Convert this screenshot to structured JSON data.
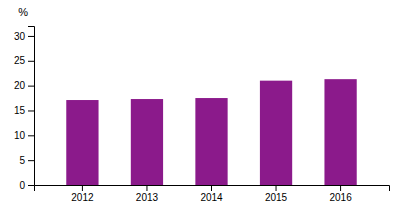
{
  "chart_data": {
    "type": "bar",
    "ylabel": "%",
    "categories": [
      "2012",
      "2013",
      "2014",
      "2015",
      "2016"
    ],
    "values": [
      17.1,
      17.3,
      17.5,
      21.0,
      21.3
    ],
    "color": "#8B1A8B",
    "ylim": [
      0,
      32
    ],
    "yticks": [
      0,
      5,
      10,
      15,
      20,
      25,
      30
    ],
    "grid": false
  }
}
